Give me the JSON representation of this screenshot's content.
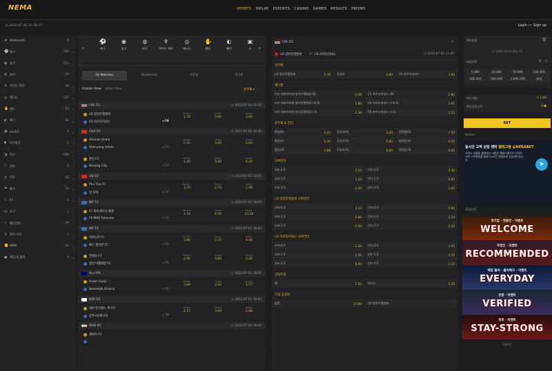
{
  "header": {
    "logo": "NEMA",
    "nav": [
      "SPORTS",
      "INPLAY",
      "ESPORTS",
      "CASINO",
      "GAMES",
      "RESULTS",
      "PROMO"
    ],
    "nav_active_index": 0,
    "datetime": "2022-07-01 15:36:37",
    "login": "Login",
    "or": "or",
    "signup": "Sign up"
  },
  "sidebar": {
    "items": [
      {
        "icon": "star-icon",
        "label": "Bookmark",
        "count": "0"
      },
      {
        "icon": "soccer-icon",
        "label": "축구",
        "count": "764"
      },
      {
        "icon": "basketball-icon",
        "label": "농구",
        "count": "113"
      },
      {
        "icon": "baseball-icon",
        "label": "야구",
        "count": "24"
      },
      {
        "icon": "hockey-icon",
        "label": "아이스 하키",
        "count": "34"
      },
      {
        "icon": "tennis-icon",
        "label": "테니스",
        "count": "137"
      },
      {
        "icon": "handball-icon",
        "label": "핸드",
        "count": "10"
      },
      {
        "icon": "volleyball-icon",
        "label": "배구",
        "count": "61"
      },
      {
        "icon": "esports-icon",
        "label": "e스포츠",
        "count": "4"
      },
      {
        "icon": "football-icon",
        "label": "미식축구",
        "count": "6"
      },
      {
        "icon": "table-tennis-icon",
        "label": "탁구",
        "count": "199"
      },
      {
        "icon": "golf-icon",
        "label": "권투",
        "count": "2"
      },
      {
        "icon": "darts-icon",
        "label": "다트",
        "count": "44"
      },
      {
        "icon": "cricket-icon",
        "label": "배구",
        "count": "12"
      },
      {
        "icon": "f1-icon",
        "label": "F1",
        "count": "2"
      },
      {
        "icon": "rugby-icon",
        "label": "수구",
        "count": "3"
      },
      {
        "icon": "badminton-icon",
        "label": "배드민턴",
        "count": "29"
      },
      {
        "icon": "hockey2-icon",
        "label": "하키 스틱",
        "count": "1"
      },
      {
        "icon": "mma-icon",
        "label": "MMA",
        "count": "54"
      },
      {
        "icon": "snooker-icon",
        "label": "게임 외 종목",
        "count": "4"
      }
    ]
  },
  "sports": [
    {
      "icon": "soccer-icon",
      "label": "축구"
    },
    {
      "icon": "basketball-icon",
      "label": "농구"
    },
    {
      "icon": "baseball-icon",
      "label": "야구"
    },
    {
      "icon": "hockey-icon",
      "label": "아이스 하키"
    },
    {
      "icon": "tennis-icon",
      "label": "테니스"
    },
    {
      "icon": "handball-icon",
      "label": "핸두"
    },
    {
      "icon": "volleyball-icon",
      "label": "배구"
    },
    {
      "icon": "esports-icon",
      "label": "오"
    }
  ],
  "tabs": [
    "All Matches",
    "Bookmark",
    "시간순",
    "리그순"
  ],
  "tabs_active_index": 0,
  "view": {
    "classic": "Classic View",
    "asian": "Asian View",
    "sort": "승무패"
  },
  "matches": [
    {
      "league": "CRC D1",
      "time": "2022-07-01 11:00",
      "home": "LD 알라후엘렌세",
      "away": "CS 카르타지네스",
      "home_n": "",
      "away_n": "+79",
      "home_odd": "1.76",
      "draw": "3.60",
      "away_odd": "3.60",
      "home_label": "Home",
      "draw_label": "Draw",
      "away_label": "Away"
    },
    {
      "league": "CHA D1",
      "time": "2022-07-01 16:30",
      "home": "Sichuan Jiunia",
      "away": "Shenyang Urban",
      "home_n": "",
      "away_n": "+77",
      "home_odd": "1.50",
      "draw": "3.60",
      "away_odd": "5.60",
      "home_label": "Home",
      "draw_label": "Draw",
      "away_label": "Away"
    },
    {
      "league": "",
      "time": "",
      "home": "쿤산 FC",
      "away": "Nanjing City",
      "home_n": "",
      "away_n": "+77",
      "home_odd": "1.40",
      "draw": "3.90",
      "away_odd": "6.20",
      "home_label": "Home",
      "draw_label": "Draw",
      "away_label": "Away"
    },
    {
      "league": "VIE D2",
      "time": "2022-07-01 18:00",
      "home": "Phu Tho FC",
      "away": "빈 포억",
      "home_n": "",
      "away_n": "+73",
      "home_odd": "3.70",
      "draw": "2.70",
      "away_odd": "1.96",
      "home_label": "Home",
      "draw_label": "Draw",
      "away_label": "Away"
    },
    {
      "league": "INT CF",
      "time": "2022-07-01 18:00",
      "home": "FC 바르네르나 플젠",
      "away": "FK MAS Taborsko",
      "home_n": "",
      "away_n": "+74",
      "home_odd": "1.14",
      "draw": "8.50",
      "away_odd": "13.00",
      "home_label": "Home",
      "draw_label": "Draw",
      "away_label": "Away"
    },
    {
      "league": "INT CF",
      "time": "2022-07-01 18:00",
      "home": "하바니코 FC",
      "away": "베드 엘이반 FC",
      "home_n": "",
      "away_n": "+73",
      "home_odd": "3.80",
      "draw": "3.75",
      "away_odd": "4.00",
      "home_label": "Home",
      "draw_label": "Draw",
      "away_label": "Away"
    },
    {
      "league": "",
      "time": "",
      "home": "얀레슈 FC",
      "away": "칼빈 야롤레뮌 FC",
      "home_n": "",
      "away_n": "+73",
      "home_odd": "2.95",
      "draw": "3.60",
      "away_odd": "2.20",
      "home_label": "Home",
      "draw_label": "Draw",
      "away_label": "Away"
    },
    {
      "league": "Aus VPL",
      "time": "2022-07-01 18:30",
      "home": "Green Gully",
      "away": "Bentleigh Greens",
      "home_n": "",
      "away_n": "+76",
      "home_odd": "3.88",
      "draw": "3.50",
      "away_odd": "1.77",
      "home_label": "Home",
      "draw_label": "Draw",
      "away_label": "Away"
    },
    {
      "league": "KOR D3",
      "time": "2022-07-01 19:00",
      "home": "대한 한국월드 축구단",
      "away": "양주시민축구단",
      "home_n": "",
      "away_n": "+78",
      "home_odd": "2.15",
      "draw": "3.00",
      "away_odd": "2.88",
      "home_label": "Home",
      "draw_label": "Draw",
      "away_label": "Away"
    },
    {
      "league": "IRAN D1",
      "time": "2022-07-01 18:00",
      "home": "세바즈 FC",
      "away": "",
      "home_n": "",
      "away_n": "",
      "home_odd": "",
      "draw": "",
      "away_odd": "",
      "home_label": "",
      "draw_label": "",
      "away_label": ""
    }
  ],
  "detail": {
    "league": "CRC D1",
    "home": "LD 알라후엘렌세",
    "vs": "vs",
    "away": "CS 카르타지네스",
    "time": "2022-07-01 11:00",
    "sections": [
      {
        "title": "승무패",
        "rows": [
          [
            [
              "LD 알라후엘렌세",
              "1.76"
            ],
            [
              "무승부",
              "3.60"
            ],
            [
              "CS 카르타지네스",
              "3.60"
            ]
          ]
        ]
      },
      {
        "title": "핸디캡",
        "rows": [
          [
            [
              "리가 데포르티바 알라후엘렌세 (0)",
              "1.38"
            ],
            [
              "CS 카르타지네스 (0)",
              "2.80"
            ]
          ],
          [
            [
              "리가 데포르티바 알라후엘렌세 (-0.5)",
              "1.80"
            ],
            [
              "CS 카르타지네스 (+0.5)",
              "1.91"
            ]
          ],
          [
            [
              "리가 데포르티바 알라후엘렌세 (-1)",
              "2.38"
            ],
            [
              "CS 카르타지네스 (+1)",
              "1.52"
            ]
          ]
        ]
      },
      {
        "title": "승무패 & 언더",
        "rows": [
          [
            [
              "홈팀(0)",
              "1.22"
            ],
            [
              "무승부(0)",
              "5.20"
            ],
            [
              "원정팀(0)",
              "7.50"
            ]
          ],
          [
            [
              "홈팀(2)",
              "5.50"
            ],
            [
              "무승부(2)",
              "5.00"
            ],
            [
              "원정팀(2)",
              "6.50"
            ]
          ],
          [
            [
              "홈팀(3)",
              "2.88"
            ],
            [
              "무승부(3)",
              "8.00"
            ],
            [
              "원정팀(3)",
              "8.00"
            ]
          ]
        ]
      },
      {
        "title": "오버언더",
        "rows": [
          [
            [
              "오버 2.5",
              "1.54"
            ],
            [
              "언더 2.5",
              "2.30"
            ]
          ],
          [
            [
              "오버 1.5",
              "1.22"
            ],
            [
              "언더 1.5",
              "3.85"
            ]
          ],
          [
            [
              "오버 3.5",
              "2.30"
            ],
            [
              "언더 3.5",
              "1.56"
            ]
          ]
        ]
      },
      {
        "title": "LD 알라후엘렌세 오버언더",
        "rows": [
          [
            [
              "오버 0.5",
              "1.12"
            ],
            [
              "언더 0.5",
              "5.00"
            ]
          ],
          [
            [
              "오버 1.5",
              "1.64"
            ],
            [
              "언더 1.5",
              "2.10"
            ]
          ],
          [
            [
              "오버 2.5",
              "2.90"
            ],
            [
              "언더 2.5",
              "1.34"
            ]
          ]
        ]
      },
      {
        "title": "CS 카르타지네스 오버언더",
        "rows": [
          [
            [
              "오버 0.5",
              "1.32"
            ],
            [
              "언더 0.5",
              "3.05"
            ]
          ],
          [
            [
              "오버 1.5",
              "2.50"
            ],
            [
              "언더 1.5",
              "1.50"
            ]
          ],
          [
            [
              "오버 2.5",
              "5.00"
            ],
            [
              "언더 2.5",
              "1.14"
            ]
          ]
        ]
      },
      {
        "title": "양팀득점",
        "rows": [
          [
            [
              "예",
              "1.52"
            ],
            [
              "아니오",
              "2.38"
            ]
          ]
        ]
      },
      {
        "title": "득점 공공팀",
        "rows": [
          [
            [
              "없음",
              "17.00"
            ],
            [
              "LD 알라후엘렌세",
              ""
            ]
          ]
        ]
      }
    ]
  },
  "slip": {
    "title": "배팅슬립",
    "empty_msg": "선택한 경기가 없습니다",
    "amount_label": "배팅금액",
    "amount_value": "0",
    "amounts": [
      "5,000",
      "10,000",
      "50,000",
      "100,000",
      "200,000",
      "500,000",
      "1,000,000",
      "최대"
    ],
    "payout_label": "예상 배당",
    "payout_value": "1.00",
    "expected_label": "예상당첨금액",
    "expected_value": "0",
    "bet_button": "BET",
    "notice_title": "Notice",
    "notice_headline": "실시간 고객 상담 센터",
    "notice_handle": "텔레그램 @NERABET",
    "notice_text": "서비스 이용중 불편하신 사항은 텔레그램으로 연락주시면 고객센터를 통해 24시간 친절하게 상담해드립니다",
    "promo_label": "프로모션",
    "promos": [
      {
        "top": "첫가입 · 첫충전 · 이벤트",
        "big": "WELCOME"
      },
      {
        "top": "추천인 · 이벤트",
        "big": "RECOMMENDED"
      },
      {
        "top": "매일 출석 · 출석체크 · 이벤트",
        "big": "EVERYDAY"
      },
      {
        "top": "인증 · 이벤트",
        "big": "VERIFIED"
      },
      {
        "top": "위로 · 이벤트",
        "big": "STAY-STRONG"
      }
    ],
    "more": "더보기"
  },
  "colors": {
    "accent": "#e8b820",
    "bg": "#1d1d1f",
    "panel": "#222224"
  }
}
